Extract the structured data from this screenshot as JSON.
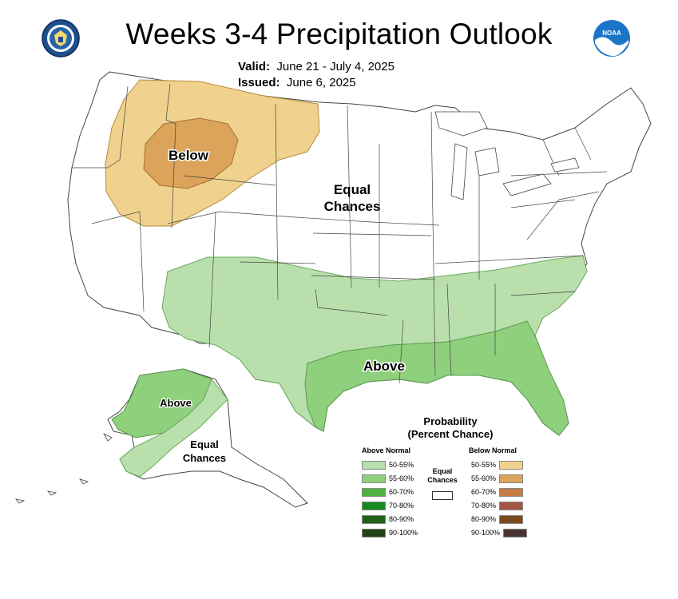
{
  "header": {
    "title": "Weeks 3-4 Precipitation Outlook",
    "valid_label": "Valid:",
    "valid_value": "June 21 - July 4, 2025",
    "issued_label": "Issued:",
    "issued_value": "June 6, 2025"
  },
  "logos": {
    "left": "department-of-commerce-seal",
    "right": "noaa-logo",
    "right_text": "NOAA"
  },
  "map_labels": {
    "below": "Below",
    "equal_chances_line1": "Equal",
    "equal_chances_line2": "Chances",
    "above": "Above",
    "ak_above": "Above",
    "ak_equal_line1": "Equal",
    "ak_equal_line2": "Chances"
  },
  "legend": {
    "title_line1": "Probability",
    "title_line2": "(Percent Chance)",
    "above_heading": "Above Normal",
    "below_heading": "Below Normal",
    "equal_line1": "Equal",
    "equal_line2": "Chances",
    "above_rows": [
      {
        "label": "50-55%",
        "color": "#b9e0ac"
      },
      {
        "label": "55-60%",
        "color": "#8fd07c"
      },
      {
        "label": "60-70%",
        "color": "#4db33e"
      },
      {
        "label": "70-80%",
        "color": "#178a1f"
      },
      {
        "label": "80-90%",
        "color": "#1f6318"
      },
      {
        "label": "90-100%",
        "color": "#234216"
      }
    ],
    "below_rows": [
      {
        "label": "50-55%",
        "color": "#f0d28e"
      },
      {
        "label": "55-60%",
        "color": "#dca35a"
      },
      {
        "label": "60-70%",
        "color": "#c77b45"
      },
      {
        "label": "70-80%",
        "color": "#a45646"
      },
      {
        "label": "80-90%",
        "color": "#7a4a1e"
      },
      {
        "label": "90-100%",
        "color": "#4a3232"
      }
    ]
  },
  "colors": {
    "above_50_55": "#b9e0ac",
    "above_55_60": "#8fd07c",
    "below_50_55": "#f0d28e",
    "below_55_60": "#dca35a",
    "state_lines": "#444444"
  }
}
